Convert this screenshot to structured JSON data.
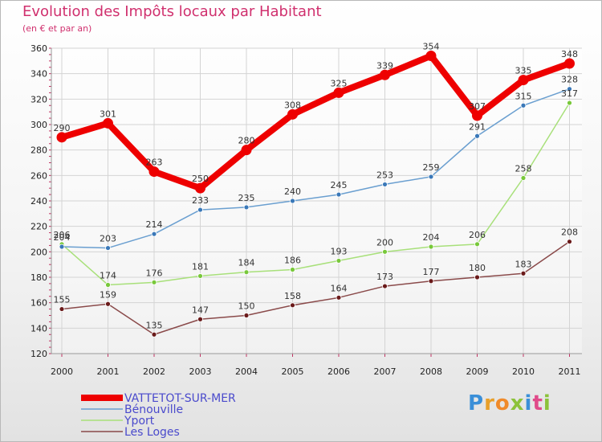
{
  "header": {
    "title": "Evolution des Impôts locaux par Habitant",
    "subtitle": "(en € et par an)"
  },
  "logo": {
    "text": "Proxiti",
    "letter_colors": [
      "#3a8fd8",
      "#e8a02a",
      "#f08a2a",
      "#8cc23a",
      "#3a8fd8",
      "#e04a8a",
      "#8cc23a"
    ]
  },
  "chart_data": {
    "type": "line",
    "title": "Evolution des Impôts locaux par Habitant",
    "subtitle": "(en € et par an)",
    "xlabel": "",
    "ylabel": "",
    "x": [
      "2000",
      "2001",
      "2002",
      "2003",
      "2004",
      "2005",
      "2006",
      "2007",
      "2008",
      "2009",
      "2010",
      "2011"
    ],
    "ylim": [
      120,
      360
    ],
    "yticks": [
      120,
      140,
      160,
      180,
      200,
      220,
      240,
      260,
      280,
      300,
      320,
      340,
      360
    ],
    "grid": true,
    "legend_position": "bottom-left",
    "series": [
      {
        "name": "VATTETOT-SUR-MER",
        "color": "#ee0000",
        "marker": "#ee0000",
        "values": [
          290,
          301,
          263,
          250,
          280,
          308,
          325,
          339,
          354,
          307,
          335,
          348
        ]
      },
      {
        "name": "Bénouville",
        "color": "#6a9fd0",
        "marker": "#3a78b8",
        "values": [
          204,
          203,
          214,
          233,
          235,
          240,
          245,
          253,
          259,
          291,
          315,
          328
        ]
      },
      {
        "name": "Yport",
        "color": "#a8e07a",
        "marker": "#78c83a",
        "values": [
          206,
          174,
          176,
          181,
          184,
          186,
          193,
          200,
          204,
          206,
          258,
          317
        ]
      },
      {
        "name": "Les Loges",
        "color": "#8a4a4a",
        "marker": "#6a1a1a",
        "values": [
          155,
          159,
          135,
          147,
          150,
          158,
          164,
          173,
          177,
          180,
          183,
          208
        ]
      }
    ]
  }
}
